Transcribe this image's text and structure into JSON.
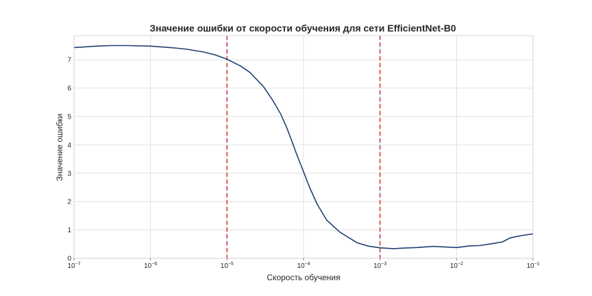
{
  "chart_data": {
    "type": "line",
    "title": "Значение ошибки от скорости обучения для сети EfficientNet-B0",
    "xlabel": "Скорость обучения",
    "ylabel": "Значение ошибки",
    "x_scale": "log",
    "xlim": [
      1e-07,
      0.1
    ],
    "ylim": [
      0,
      7.85
    ],
    "grid": true,
    "x_ticks": [
      {
        "value": 1e-07,
        "base": "10",
        "exp": "−7"
      },
      {
        "value": 1e-06,
        "base": "10",
        "exp": "−6"
      },
      {
        "value": 1e-05,
        "base": "10",
        "exp": "−5"
      },
      {
        "value": 0.0001,
        "base": "10",
        "exp": "−4"
      },
      {
        "value": 0.001,
        "base": "10",
        "exp": "−3"
      },
      {
        "value": 0.01,
        "base": "10",
        "exp": "−2"
      },
      {
        "value": 0.1,
        "base": "10",
        "exp": "−1"
      }
    ],
    "y_ticks": [
      0,
      1,
      2,
      3,
      4,
      5,
      6,
      7
    ],
    "series": [
      {
        "color": "#1f3f73",
        "x": [
          1e-07,
          2e-07,
          3e-07,
          5e-07,
          1e-06,
          2e-06,
          3e-06,
          5e-06,
          7e-06,
          1e-05,
          1.5e-05,
          2e-05,
          3e-05,
          4e-05,
          5e-05,
          6e-05,
          7e-05,
          8e-05,
          0.0001,
          0.00012,
          0.00015,
          0.0002,
          0.0003,
          0.0005,
          0.0007,
          0.001,
          0.0015,
          0.002,
          0.003,
          0.005,
          0.007,
          0.01,
          0.015,
          0.02,
          0.03,
          0.04,
          0.05,
          0.07,
          0.1
        ],
        "y": [
          7.43,
          7.48,
          7.5,
          7.5,
          7.48,
          7.42,
          7.37,
          7.27,
          7.17,
          7.02,
          6.78,
          6.55,
          6.05,
          5.55,
          5.1,
          4.62,
          4.15,
          3.72,
          3.05,
          2.5,
          1.92,
          1.35,
          0.92,
          0.55,
          0.43,
          0.37,
          0.34,
          0.36,
          0.38,
          0.42,
          0.4,
          0.38,
          0.44,
          0.45,
          0.52,
          0.58,
          0.72,
          0.8,
          0.86
        ]
      }
    ],
    "vlines": [
      {
        "x": 1e-05,
        "color": "#cc0000",
        "style": "dashed"
      },
      {
        "x": 0.001,
        "color": "#cc0000",
        "style": "dashed"
      }
    ]
  }
}
